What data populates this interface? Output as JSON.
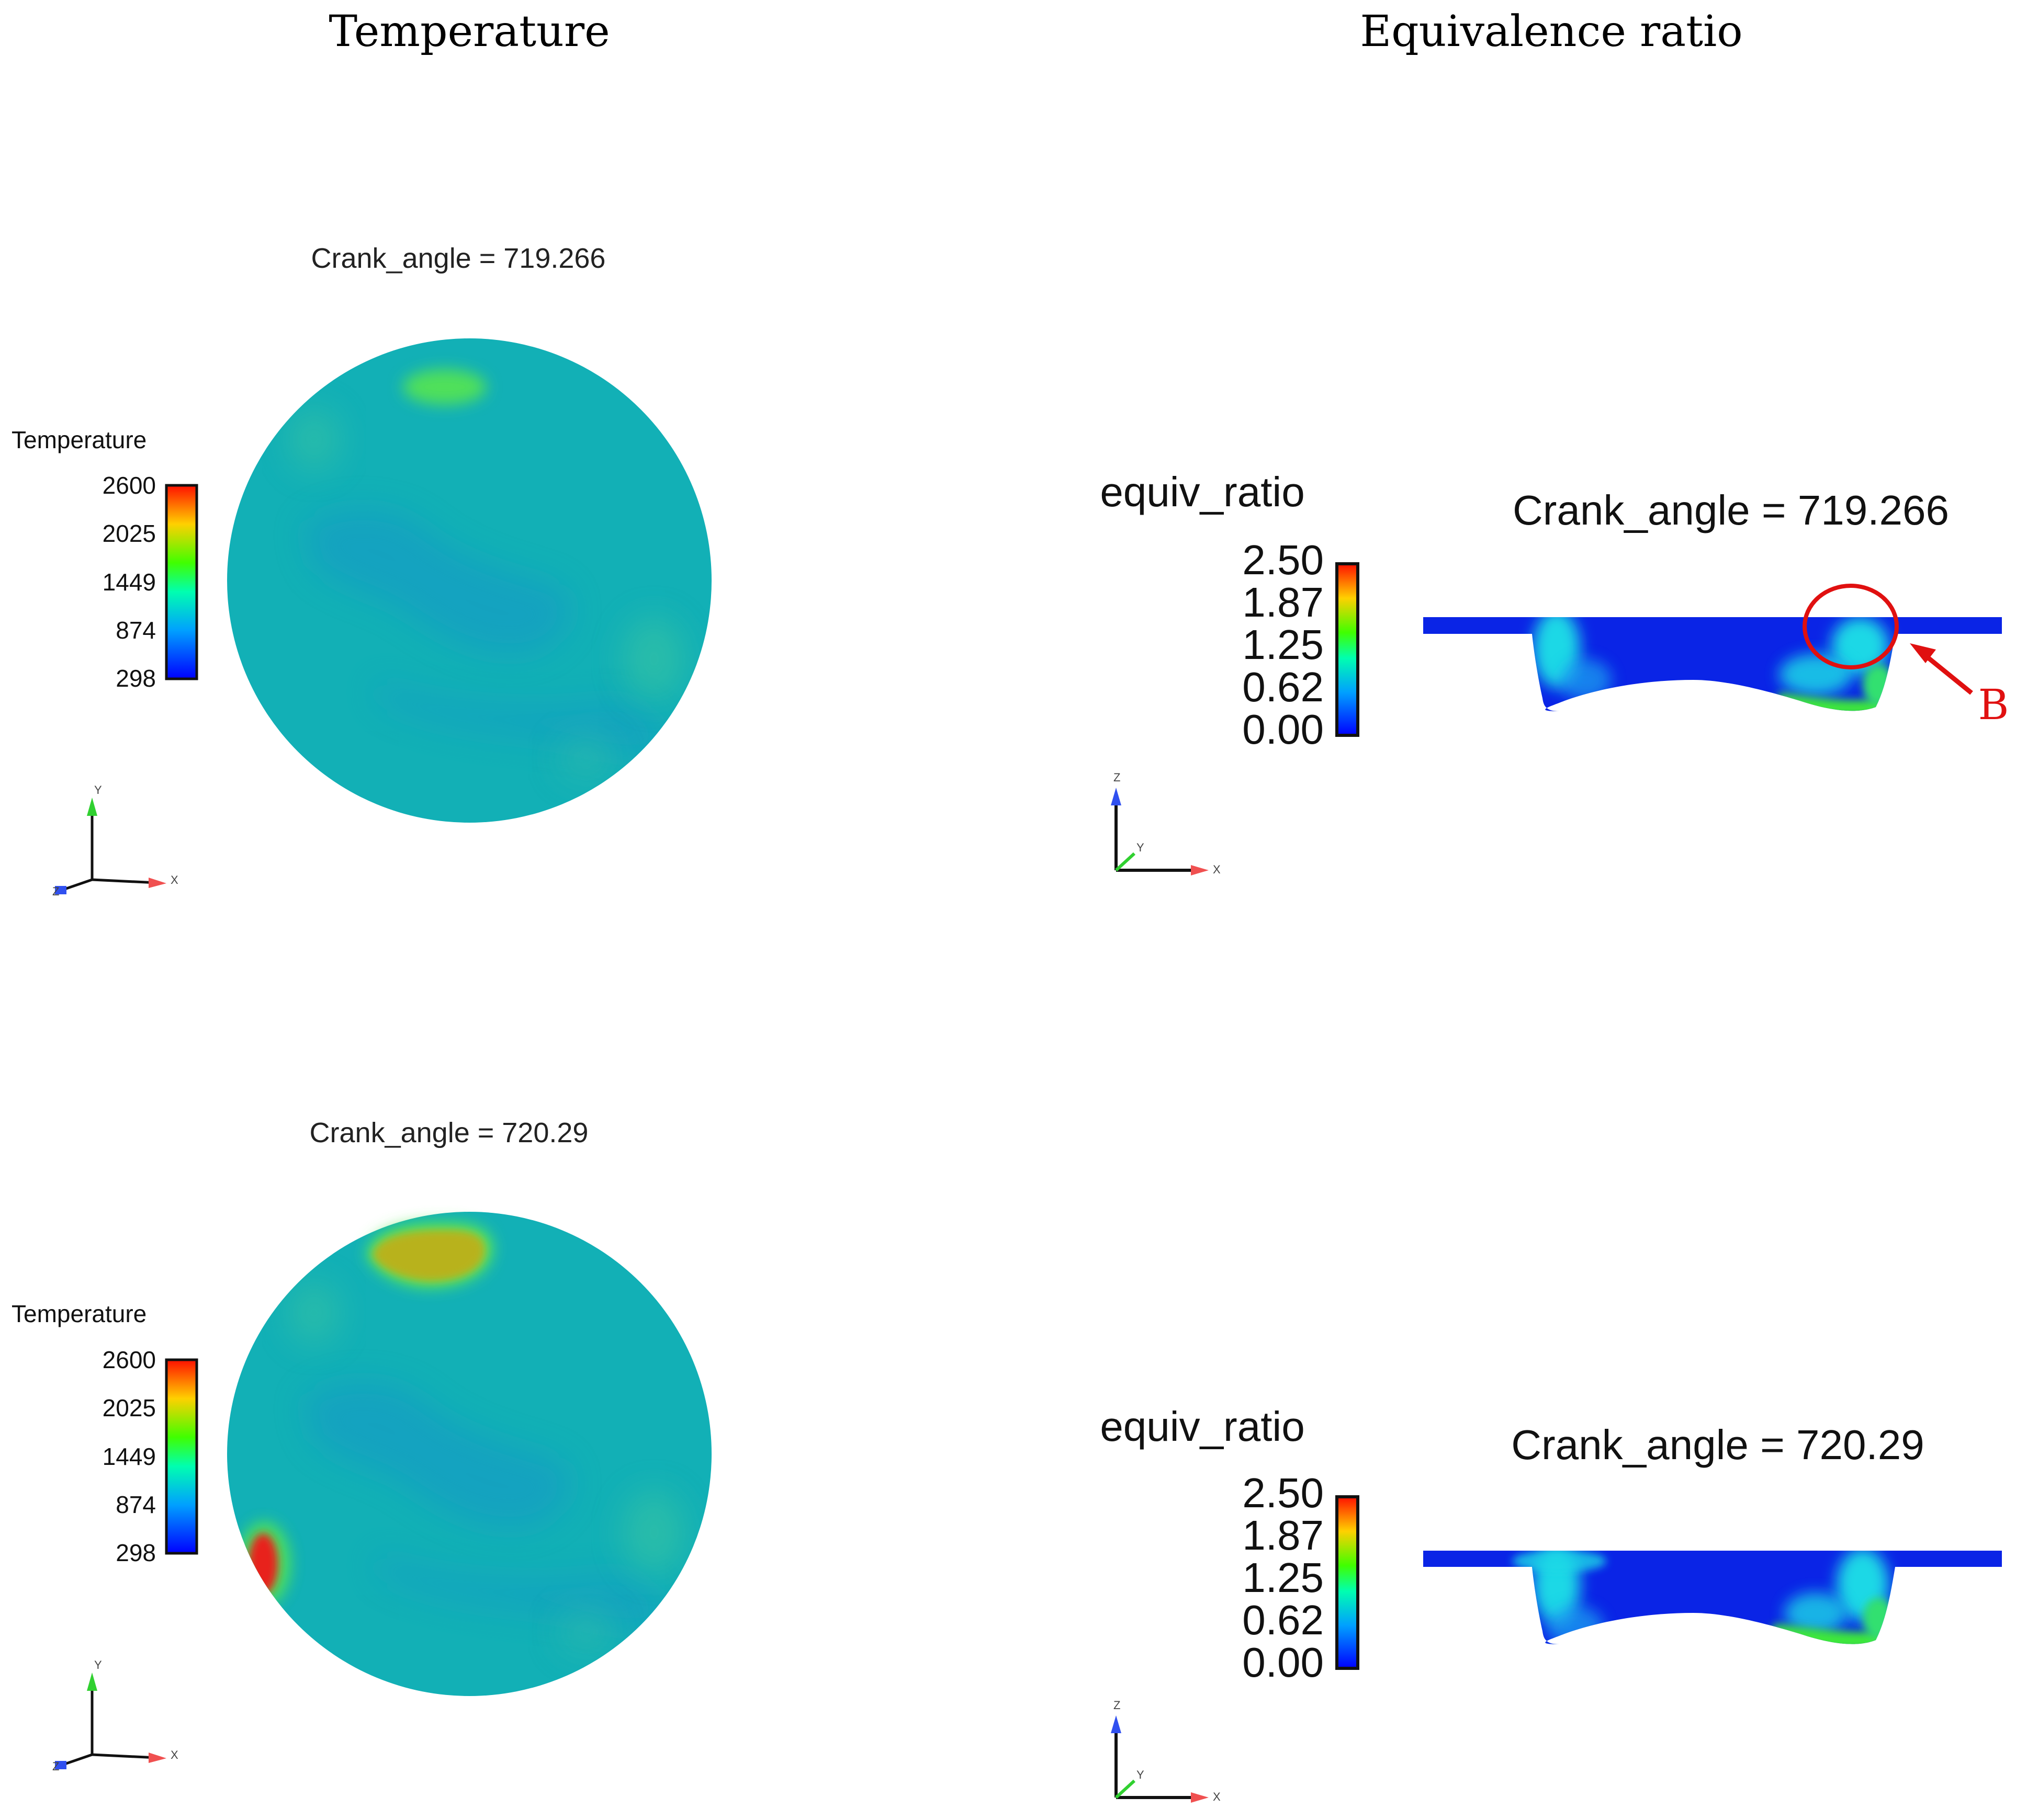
{
  "columns": {
    "left_title": "Temperature",
    "right_title": "Equivalence ratio"
  },
  "temperature_panels": [
    {
      "crank_label": "Crank_angle = 719.266",
      "legend_title": "Temperature",
      "legend_ticks": [
        "2600",
        "2025",
        "1449",
        "874",
        "298"
      ],
      "axes": {
        "vertical": "Y",
        "horizontal": "X",
        "out_of_plane": "Z"
      }
    },
    {
      "crank_label": "Crank_angle = 720.29",
      "legend_title": "Temperature",
      "legend_ticks": [
        "2600",
        "2025",
        "1449",
        "874",
        "298"
      ],
      "axes": {
        "vertical": "Y",
        "horizontal": "X",
        "out_of_plane": "Z"
      }
    }
  ],
  "equiv_panels": [
    {
      "crank_label": "Crank_angle = 719.266",
      "legend_title": "equiv_ratio",
      "legend_ticks": [
        "2.50",
        "1.87",
        "1.25",
        "0.62",
        "0.00"
      ],
      "axes": {
        "vertical": "Z",
        "horizontal": "X",
        "out_of_plane": "Y"
      },
      "annotation": "B"
    },
    {
      "crank_label": "Crank_angle = 720.29",
      "legend_title": "equiv_ratio",
      "legend_ticks": [
        "2.50",
        "1.87",
        "1.25",
        "0.62",
        "0.00"
      ],
      "axes": {
        "vertical": "Z",
        "horizontal": "X",
        "out_of_plane": "Y"
      }
    }
  ],
  "colors": {
    "field_base": "#12b0b6",
    "field_cool": "#1598c8",
    "hot_red": "#e8231a",
    "hot_yellow": "#b8b21e",
    "warm_green": "#3ee83a",
    "rich_blue": "#0a24e6",
    "lean_cyan": "#1ad8e6",
    "annotation_red": "#e01010",
    "axis_x": "#f05050",
    "axis_y": "#30d030",
    "axis_z": "#3050f0"
  },
  "colormap": "rainbow"
}
